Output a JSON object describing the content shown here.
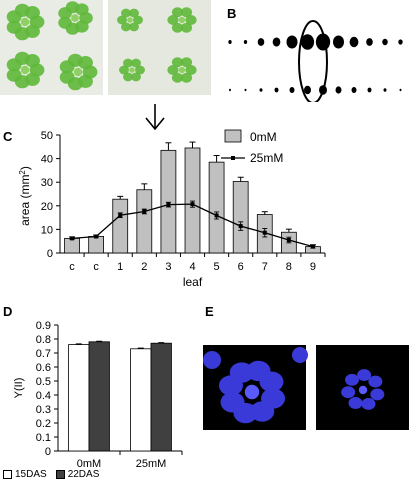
{
  "panels": {
    "a": "A",
    "b": "B",
    "c": "C",
    "d": "D",
    "e": "E"
  },
  "chart_data": [
    {
      "type": "bar",
      "panel": "C",
      "categories": [
        "c",
        "c",
        "1",
        "2",
        "3",
        "4",
        "5",
        "6",
        "7",
        "8",
        "9"
      ],
      "series": [
        {
          "name": "0mM",
          "kind": "bar",
          "color": "#c0c0c0",
          "values": [
            6.2,
            7.0,
            22.8,
            26.8,
            43.5,
            44.5,
            38.5,
            30.3,
            16.3,
            8.8,
            2.7
          ],
          "errors": [
            0.6,
            0.6,
            1.2,
            2.5,
            3.2,
            2.5,
            2.8,
            1.8,
            1.2,
            1.3,
            0.8
          ]
        },
        {
          "name": "25mM",
          "kind": "line",
          "color": "#000000",
          "values": [
            6.2,
            7.0,
            16.0,
            17.6,
            20.5,
            20.7,
            15.9,
            11.4,
            8.6,
            5.5,
            2.7
          ],
          "errors": [
            0.5,
            0.5,
            1.0,
            1.0,
            1.0,
            1.3,
            1.5,
            1.8,
            1.8,
            1.2,
            0.6
          ]
        }
      ],
      "xlabel": "leaf",
      "ylabel": "area (mm",
      "ylabel_sup": "2",
      "ylabel_end": ")",
      "ylim": [
        0,
        50
      ],
      "yticks": [
        0,
        10,
        20,
        30,
        40,
        50
      ],
      "legend": "top-right",
      "grid": false
    },
    {
      "type": "bar",
      "panel": "D",
      "categories": [
        "0mM",
        "25mM"
      ],
      "series": [
        {
          "name": "15DAS",
          "color": "#ffffff",
          "values": [
            0.76,
            0.73
          ],
          "errors": [
            0.005,
            0.005
          ]
        },
        {
          "name": "22DAS",
          "color": "#404040",
          "values": [
            0.78,
            0.77
          ],
          "errors": [
            0.004,
            0.004
          ]
        }
      ],
      "ylabel": "Y(II)",
      "ylim": [
        0,
        0.9
      ],
      "yticks": [
        "0",
        "0.1",
        "0.2",
        "0.3",
        "0.4",
        "0.5",
        "0.6",
        "0.7",
        "0.8",
        "0.9"
      ],
      "legend": "bottom",
      "grid": false
    }
  ],
  "icons": {
    "photo": "rosette-photo-icon",
    "silhouettes": "leaf-silhouette-icon",
    "arrow": "down-arrow-icon",
    "fluorescence": "fluorescence-image-icon"
  },
  "colors": {
    "plant_green": "#5fb83a",
    "fluor_blue": "#3a3ad8",
    "fluor_bg": "#000000"
  }
}
